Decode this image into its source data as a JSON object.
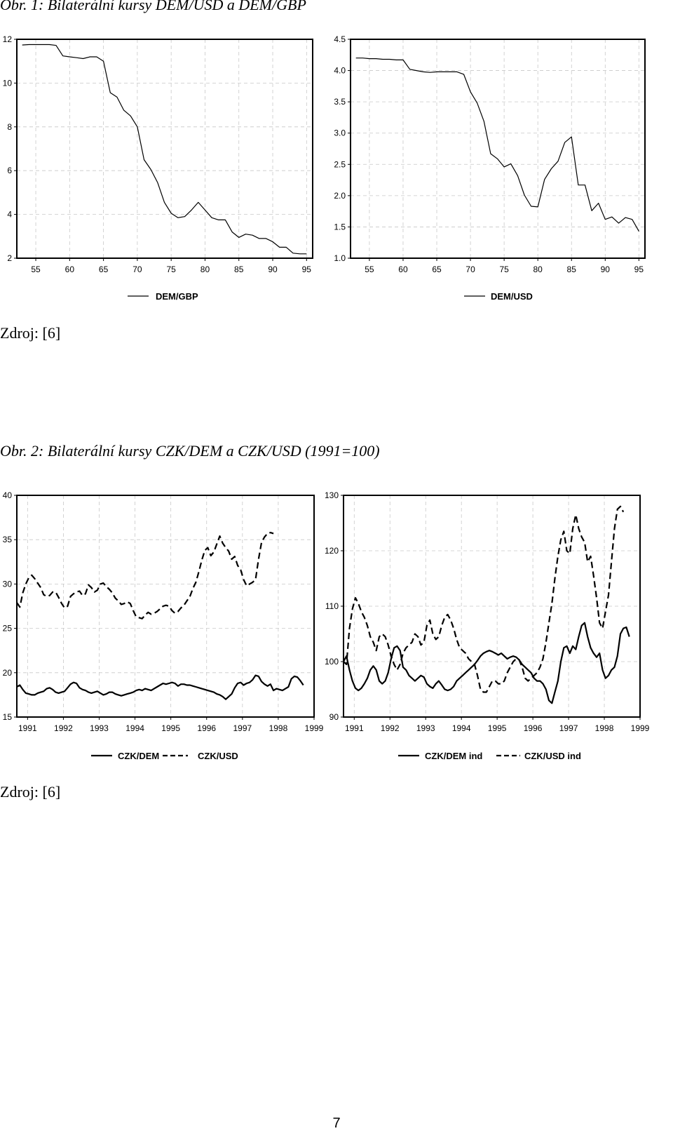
{
  "figure1": {
    "title": "Obr. 1: Bilaterální kursy DEM/USD a DEM/GBP",
    "source": "Zdroj: [6]"
  },
  "figure2": {
    "title": "Obr. 2: Bilaterální kursy CZK/DEM a CZK/USD (1991=100)",
    "source": "Zdroj: [6]"
  },
  "page_number": "7",
  "chart_data": [
    {
      "type": "line",
      "x": [
        1950,
        1951,
        1952,
        1953,
        1954,
        1955,
        1956,
        1957,
        1958,
        1959,
        1960,
        1961,
        1962,
        1963,
        1964,
        1965,
        1966,
        1967,
        1968,
        1969,
        1970,
        1971,
        1972,
        1973,
        1974,
        1975,
        1976,
        1977,
        1978,
        1979,
        1980,
        1981,
        1982,
        1983,
        1984,
        1985,
        1986,
        1987,
        1988,
        1989,
        1990,
        1991,
        1992,
        1993,
        1994,
        1995,
        1996,
        1997
      ],
      "series": [
        {
          "name": "DEM/GBP",
          "style": "solid",
          "values": [
            11.76,
            11.76,
            11.76,
            11.74,
            11.76,
            11.76,
            11.76,
            11.76,
            11.72,
            11.24,
            11.2,
            11.16,
            11.12,
            11.2,
            11.2,
            11.0,
            9.56,
            9.36,
            8.76,
            8.5,
            8.0,
            6.5,
            6.05,
            5.45,
            4.55,
            4.05,
            3.85,
            3.9,
            4.2,
            4.55,
            4.2,
            3.85,
            3.75,
            3.75,
            3.2,
            2.95,
            3.1,
            3.05,
            2.9,
            2.9,
            2.75,
            2.5,
            2.5,
            2.23,
            2.2,
            2.2,
            2.2,
            2.35
          ]
        }
      ],
      "xticks": [
        "55",
        "60",
        "65",
        "70",
        "75",
        "80",
        "85",
        "90",
        "95"
      ],
      "ylim": [
        2,
        12
      ],
      "yticks": [
        "2",
        "4",
        "6",
        "8",
        "10",
        "12"
      ],
      "grid": true,
      "legend": "bottom"
    },
    {
      "type": "line",
      "x": [
        1950,
        1951,
        1952,
        1953,
        1954,
        1955,
        1956,
        1957,
        1958,
        1959,
        1960,
        1961,
        1962,
        1963,
        1964,
        1965,
        1966,
        1967,
        1968,
        1969,
        1970,
        1971,
        1972,
        1973,
        1974,
        1975,
        1976,
        1977,
        1978,
        1979,
        1980,
        1981,
        1982,
        1983,
        1984,
        1985,
        1986,
        1987,
        1988,
        1989,
        1990,
        1991,
        1992,
        1993,
        1994,
        1995,
        1996,
        1997
      ],
      "series": [
        {
          "name": "DEM/USD",
          "style": "solid",
          "values": [
            4.2,
            4.2,
            4.2,
            4.2,
            4.2,
            4.19,
            4.19,
            4.18,
            4.18,
            4.17,
            4.17,
            4.02,
            4.0,
            3.98,
            3.97,
            3.98,
            3.98,
            3.98,
            3.98,
            3.94,
            3.66,
            3.48,
            3.19,
            2.67,
            2.59,
            2.46,
            2.51,
            2.32,
            2.01,
            1.83,
            1.82,
            2.26,
            2.43,
            2.55,
            2.85,
            2.94,
            2.17,
            2.17,
            1.76,
            1.88,
            1.62,
            1.66,
            1.56,
            1.65,
            1.62,
            1.43,
            1.5,
            1.73
          ]
        }
      ],
      "xticks": [
        "55",
        "60",
        "65",
        "70",
        "75",
        "80",
        "85",
        "90",
        "95"
      ],
      "ylim": [
        1.0,
        4.5
      ],
      "yticks": [
        "1.0",
        "1.5",
        "2.0",
        "2.5",
        "3.0",
        "3.5",
        "4.0",
        "4.5"
      ],
      "grid": true,
      "legend": "bottom"
    },
    {
      "type": "line",
      "x_start": 1991.0,
      "x_step": 0.08333,
      "series": [
        {
          "name": "CZK/DEM",
          "style": "solid",
          "values": [
            18.4,
            18.6,
            18.1,
            17.7,
            17.6,
            17.5,
            17.5,
            17.7,
            17.8,
            17.9,
            18.2,
            18.3,
            18.1,
            17.8,
            17.7,
            17.8,
            17.9,
            18.3,
            18.7,
            18.9,
            18.8,
            18.3,
            18.1,
            18.0,
            17.8,
            17.7,
            17.8,
            17.9,
            17.7,
            17.5,
            17.6,
            17.8,
            17.8,
            17.6,
            17.5,
            17.4,
            17.5,
            17.6,
            17.7,
            17.8,
            18.0,
            18.1,
            18.0,
            18.2,
            18.1,
            18.0,
            18.2,
            18.4,
            18.6,
            18.8,
            18.7,
            18.8,
            18.9,
            18.8,
            18.5,
            18.7,
            18.7,
            18.6,
            18.6,
            18.5,
            18.4,
            18.3,
            18.2,
            18.1,
            18.0,
            17.9,
            17.8,
            17.6,
            17.5,
            17.3,
            17.0,
            17.3,
            17.6,
            18.3,
            18.8,
            18.9,
            18.6,
            18.8,
            18.9,
            19.2,
            19.7,
            19.6,
            19.0,
            18.7,
            18.5,
            18.7,
            18.0,
            18.2,
            18.1,
            18.0,
            18.2,
            18.4,
            19.3,
            19.6,
            19.5,
            19.1,
            18.6
          ]
        },
        {
          "name": "CZK/USD",
          "style": "dashed",
          "values": [
            27.9,
            27.4,
            29.0,
            30.0,
            30.7,
            31.0,
            30.6,
            30.1,
            29.6,
            28.8,
            28.6,
            28.7,
            29.1,
            29.1,
            28.5,
            27.8,
            27.3,
            27.5,
            28.6,
            28.9,
            29.1,
            29.2,
            28.7,
            28.9,
            29.9,
            29.6,
            29.1,
            29.3,
            30.0,
            30.1,
            29.7,
            29.4,
            29.0,
            28.4,
            28.1,
            27.7,
            27.8,
            28.0,
            27.8,
            27.0,
            26.3,
            26.2,
            26.1,
            26.5,
            26.8,
            26.6,
            26.7,
            26.9,
            27.2,
            27.5,
            27.6,
            27.5,
            27.0,
            26.7,
            26.9,
            27.3,
            27.6,
            28.1,
            28.6,
            29.5,
            30.2,
            31.4,
            32.7,
            33.8,
            34.1,
            33.2,
            33.6,
            34.5,
            35.4,
            34.6,
            34.1,
            33.7,
            32.8,
            33.1,
            32.1,
            31.6,
            30.5,
            29.8,
            30.0,
            30.2,
            30.5,
            32.8,
            34.7,
            35.3,
            35.7,
            35.8,
            35.7
          ]
        }
      ],
      "xticks": [
        "1991",
        "1992",
        "1993",
        "1994",
        "1995",
        "1996",
        "1997",
        "1998",
        "1999"
      ],
      "ylim": [
        15,
        40
      ],
      "yticks": [
        "15",
        "20",
        "25",
        "30",
        "35",
        "40"
      ],
      "grid": true,
      "legend": "bottom"
    },
    {
      "type": "line",
      "x_start": 1991.0,
      "x_step": 0.08333,
      "series": [
        {
          "name": "CZK/DEM ind",
          "style": "solid",
          "values": [
            100.0,
            101.0,
            98.5,
            96.5,
            95.2,
            94.8,
            95.2,
            96.0,
            97.0,
            98.5,
            99.2,
            98.5,
            96.5,
            96.0,
            96.5,
            98.0,
            100.5,
            102.5,
            102.8,
            102.0,
            99.0,
            98.5,
            97.5,
            97.0,
            96.5,
            97.0,
            97.5,
            97.2,
            96.0,
            95.5,
            95.2,
            96.0,
            96.5,
            95.8,
            95.0,
            94.8,
            95.0,
            95.5,
            96.5,
            97.0,
            97.5,
            98.0,
            98.5,
            99.0,
            99.5,
            100.2,
            101.0,
            101.5,
            101.8,
            102.0,
            101.8,
            101.5,
            101.2,
            101.5,
            101.0,
            100.5,
            100.8,
            101.0,
            100.8,
            100.3,
            99.5,
            99.0,
            98.5,
            98.0,
            97.0,
            96.5,
            96.5,
            96.0,
            95.0,
            93.0,
            92.5,
            94.5,
            96.5,
            100.0,
            102.5,
            102.8,
            101.5,
            102.8,
            102.2,
            104.5,
            106.5,
            107.0,
            104.5,
            102.5,
            101.5,
            100.8,
            101.5,
            98.5,
            97.0,
            97.5,
            98.5,
            99.0,
            101.0,
            105.0,
            106.0,
            106.2,
            104.5
          ]
        },
        {
          "name": "CZK/USD ind",
          "style": "dashed",
          "values": [
            100.0,
            99.5,
            106.0,
            109.5,
            111.5,
            110.5,
            109.0,
            108.0,
            106.5,
            104.5,
            103.5,
            102.0,
            104.5,
            105.0,
            104.5,
            103.0,
            101.0,
            99.5,
            98.5,
            99.5,
            101.5,
            102.5,
            103.0,
            103.5,
            105.0,
            104.5,
            103.0,
            103.5,
            106.5,
            107.5,
            105.0,
            104.0,
            104.5,
            106.5,
            108.0,
            108.5,
            107.5,
            106.0,
            104.0,
            102.5,
            102.0,
            101.5,
            100.5,
            100.0,
            99.5,
            97.5,
            95.0,
            94.5,
            94.5,
            95.5,
            96.5,
            96.5,
            96.0,
            96.0,
            96.5,
            98.0,
            99.0,
            100.0,
            100.5,
            100.3,
            99.0,
            97.0,
            96.5,
            97.0,
            97.5,
            98.0,
            99.0,
            100.5,
            103.5,
            107.0,
            110.5,
            115.0,
            119.0,
            122.0,
            123.5,
            120.0,
            119.5,
            124.0,
            126.5,
            124.0,
            122.5,
            121.5,
            118.0,
            119.0,
            115.5,
            111.5,
            107.0,
            106.0,
            109.0,
            112.0,
            118.0,
            124.0,
            127.5,
            128.0,
            127.0
          ]
        }
      ],
      "xticks": [
        "1991",
        "1992",
        "1993",
        "1994",
        "1995",
        "1996",
        "1997",
        "1998",
        "1999"
      ],
      "ylim": [
        90,
        130
      ],
      "yticks": [
        "90",
        "100",
        "110",
        "120",
        "130"
      ],
      "grid": true,
      "legend": "bottom"
    }
  ]
}
